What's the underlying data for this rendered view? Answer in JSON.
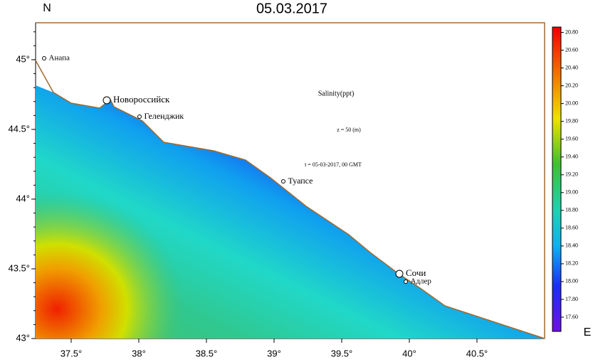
{
  "title": "05.03.2017",
  "north_label": "N",
  "east_label": "E",
  "annotations": [
    "Salinity(ppt)",
    "z = 50 (m)",
    "t = 05-03-2017, 00 GMT"
  ],
  "cities": [
    "Анапа",
    "Новороссийск",
    "Геленджик",
    "Туапсе",
    "Сочи",
    "Адлер"
  ],
  "lat_axis": {
    "lim": [
      43,
      45.265
    ],
    "ticks": [
      {
        "value": 45,
        "label": "45°"
      },
      {
        "value": 44.5,
        "label": "44.5°"
      },
      {
        "value": 44,
        "label": "44°"
      },
      {
        "value": 43.5,
        "label": "43.5°"
      },
      {
        "value": 43,
        "label": "43°"
      }
    ]
  },
  "lon_axis": {
    "lim": [
      37.237,
      41.0
    ],
    "ticks": [
      {
        "value": 37.5,
        "label": "37.5°"
      },
      {
        "value": 38,
        "label": "38°"
      },
      {
        "value": 38.5,
        "label": "38.5°"
      },
      {
        "value": 39,
        "label": "39°"
      },
      {
        "value": 39.5,
        "label": "39.5°"
      },
      {
        "value": 40,
        "label": "40°"
      },
      {
        "value": 40.5,
        "label": "40.5°"
      }
    ]
  },
  "colorbar": {
    "lim": [
      17.44,
      20.86
    ],
    "ticks": [
      {
        "value": 20.8,
        "label": "20.80"
      },
      {
        "value": 20.6,
        "label": "20.60"
      },
      {
        "value": 20.4,
        "label": "20.40"
      },
      {
        "value": 20.2,
        "label": "20.20"
      },
      {
        "value": 20.0,
        "label": "20.00"
      },
      {
        "value": 19.8,
        "label": "19.80"
      },
      {
        "value": 19.6,
        "label": "19.60"
      },
      {
        "value": 19.4,
        "label": "19.40"
      },
      {
        "value": 19.2,
        "label": "19.20"
      },
      {
        "value": 19.0,
        "label": "19.00"
      },
      {
        "value": 18.8,
        "label": "18.80"
      },
      {
        "value": 18.6,
        "label": "18.60"
      },
      {
        "value": 18.4,
        "label": "18.40"
      },
      {
        "value": 18.2,
        "label": "18.20"
      },
      {
        "value": 18.0,
        "label": "18.00"
      },
      {
        "value": 17.8,
        "label": "17.80"
      },
      {
        "value": 17.6,
        "label": "17.60"
      }
    ]
  }
}
